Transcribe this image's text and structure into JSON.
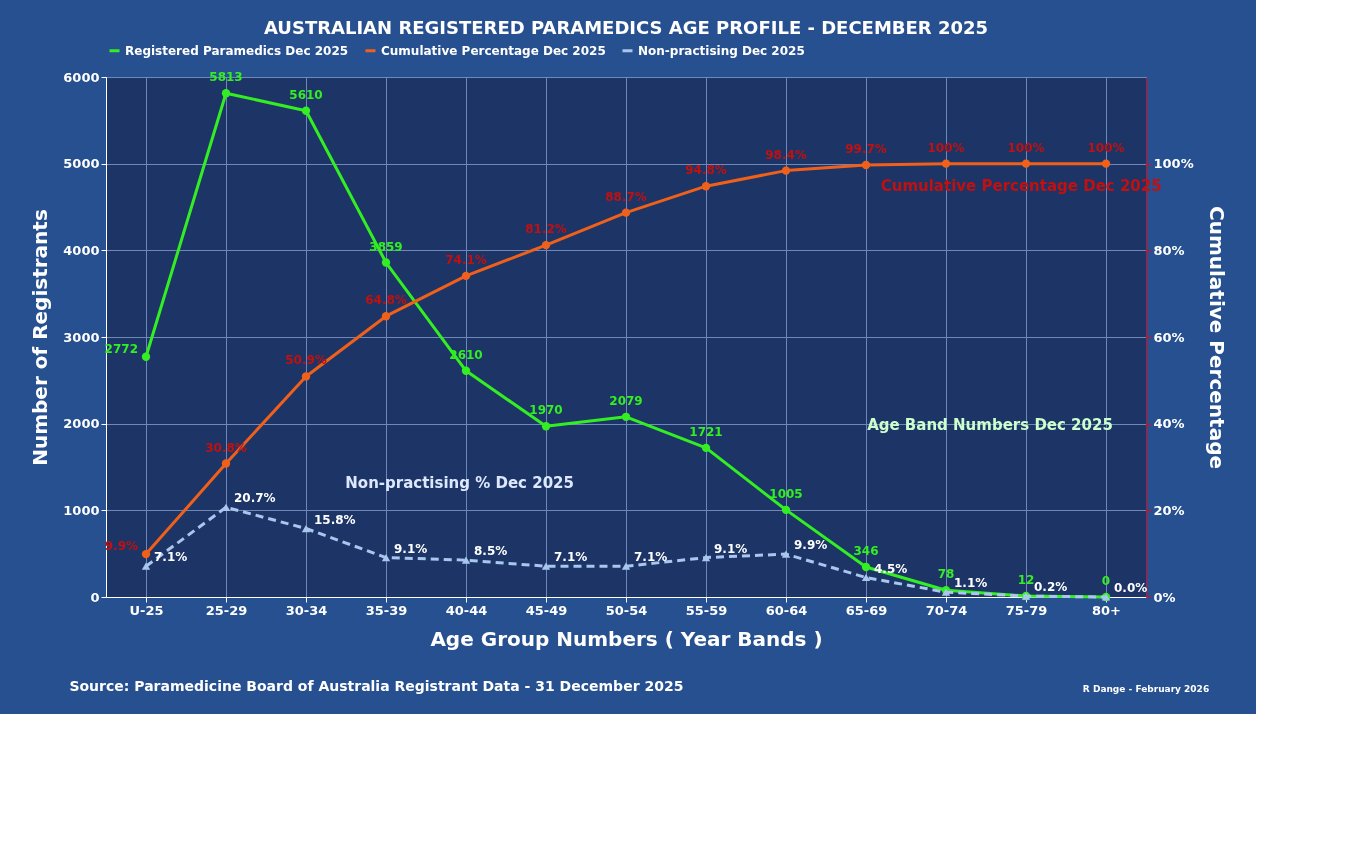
{
  "chart_data": {
    "type": "line",
    "title": "AUSTRALIAN REGISTERED PARAMEDICS AGE PROFILE - DECEMBER 2025",
    "xlabel": "Age Group Numbers ( Year Bands )",
    "ylabel": "Number of  Registrants",
    "y2label": "Cumulative  Percentage",
    "categories": [
      "U-25",
      "25-29",
      "30-34",
      "35-39",
      "40-44",
      "45-49",
      "50-54",
      "55-59",
      "60-64",
      "65-69",
      "70-74",
      "75-79",
      "80+"
    ],
    "series": [
      {
        "name": "Registered Paramedics Dec 2025",
        "color": "#33ee22",
        "marker": "circle",
        "line_style": "solid",
        "axis": "y",
        "values": [
          2772,
          5813,
          5610,
          3859,
          2610,
          1970,
          2079,
          1721,
          1005,
          346,
          78,
          12,
          0
        ],
        "value_labels": [
          "2772",
          "5813",
          "5610",
          "3859",
          "2610",
          "1970",
          "2079",
          "1721",
          "1005",
          "346",
          "78",
          "12",
          "0"
        ]
      },
      {
        "name": "Cumulative Percentage Dec 2025",
        "color": "#f0601a",
        "marker": "circle",
        "line_style": "solid",
        "axis": "y2",
        "values": [
          9.9,
          30.8,
          50.9,
          64.8,
          74.1,
          81.2,
          88.7,
          94.8,
          98.4,
          99.7,
          100,
          100,
          100
        ],
        "value_labels": [
          "9.9%",
          "30.8%",
          "50.9%",
          "64.8%",
          "74.1%",
          "81.2%",
          "88.7%",
          "94.8%",
          "98.4%",
          "99.7%",
          "100%",
          "100%",
          "100%"
        ]
      },
      {
        "name": "Non-practising Dec 2025",
        "color": "#a9c6ee",
        "marker": "triangle",
        "line_style": "dashed",
        "axis": "y2",
        "values": [
          7.1,
          20.7,
          15.8,
          9.1,
          8.5,
          7.1,
          7.1,
          9.1,
          9.9,
          4.5,
          1.1,
          0.2,
          0.0
        ],
        "value_labels": [
          "7.1%",
          "20.7%",
          "15.8%",
          "9.1%",
          "8.5%",
          "7.1%",
          "7.1%",
          "9.1%",
          "9.9%",
          "4.5%",
          "1.1%",
          "0.2%",
          "0.0%"
        ]
      }
    ],
    "ylim": [
      0,
      6000
    ],
    "yticks": [
      0,
      1000,
      2000,
      3000,
      4000,
      5000,
      6000
    ],
    "y2lim": [
      0,
      120
    ],
    "y2ticks": [
      {
        "value": 0,
        "label": "0%"
      },
      {
        "value": 20,
        "label": "20%"
      },
      {
        "value": 40,
        "label": "40%"
      },
      {
        "value": 60,
        "label": "60%"
      },
      {
        "value": 80,
        "label": "80%"
      },
      {
        "value": 100,
        "label": "100%"
      }
    ],
    "grid": true,
    "legend": "top",
    "annotations": [
      "Cumulative Percentage Dec 2025",
      "Age Band Numbers Dec 2025",
      "Non-practising % Dec 2025",
      "Source: Paramedicine Board of Australia Registrant Data - 31 December 2025",
      "R Dange - February 2026"
    ]
  }
}
